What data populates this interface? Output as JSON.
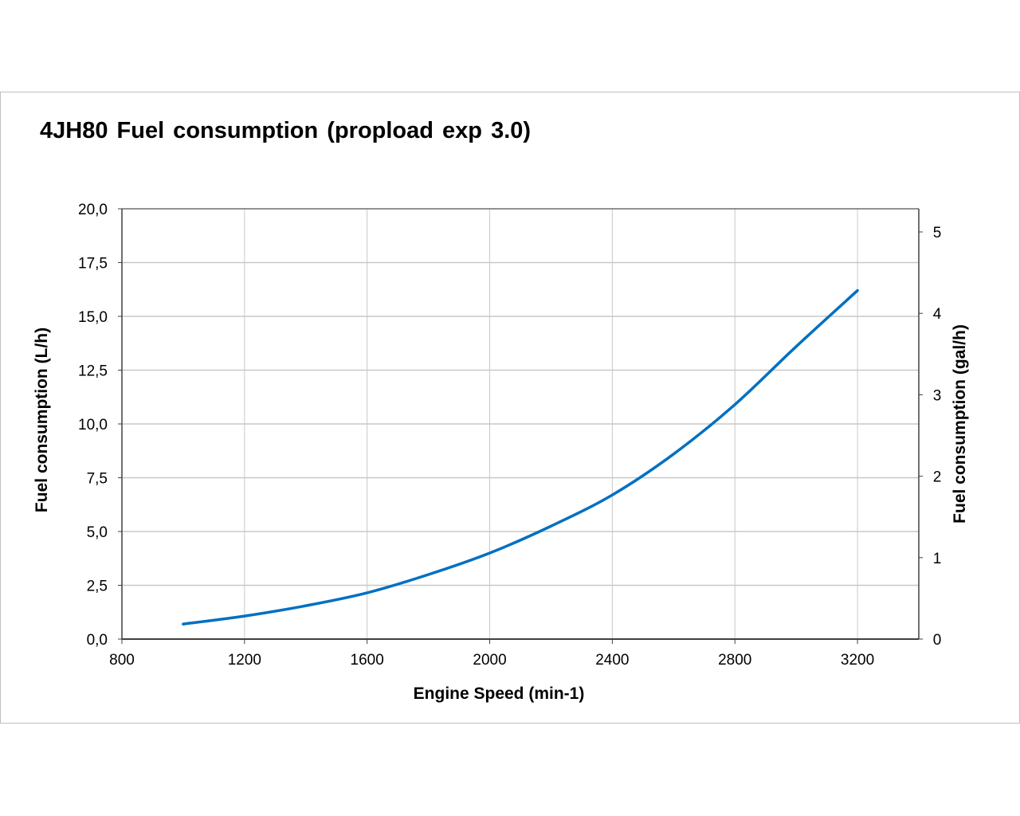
{
  "chart_data": {
    "type": "line",
    "title": "4JH80 Fuel consumption (propload exp 3.0)",
    "xlabel": "Engine Speed (min-1)",
    "ylabel": "Fuel consumption (L/h)",
    "y2label": "Fuel consumption (gal/h)",
    "xlim": [
      800,
      3400
    ],
    "ylim": [
      0,
      20
    ],
    "y2lim": [
      0,
      5.284
    ],
    "xticks": [
      800,
      1200,
      1600,
      2000,
      2400,
      2800,
      3200
    ],
    "yticks": [
      "0,0",
      "2,5",
      "5,0",
      "7,5",
      "10,0",
      "12,5",
      "15,0",
      "17,5",
      "20,0"
    ],
    "y2ticks": [
      "0",
      "1",
      "2",
      "3",
      "4",
      "5"
    ],
    "grid": true,
    "series": [
      {
        "name": "Fuel consumption",
        "color": "#0070c0",
        "x": [
          1000,
          1200,
          1400,
          1600,
          1800,
          2000,
          2200,
          2400,
          2600,
          2800,
          3000,
          3200
        ],
        "y": [
          0.7,
          1.07,
          1.55,
          2.15,
          3.0,
          4.0,
          5.25,
          6.7,
          8.6,
          10.9,
          13.6,
          16.2
        ]
      }
    ]
  }
}
